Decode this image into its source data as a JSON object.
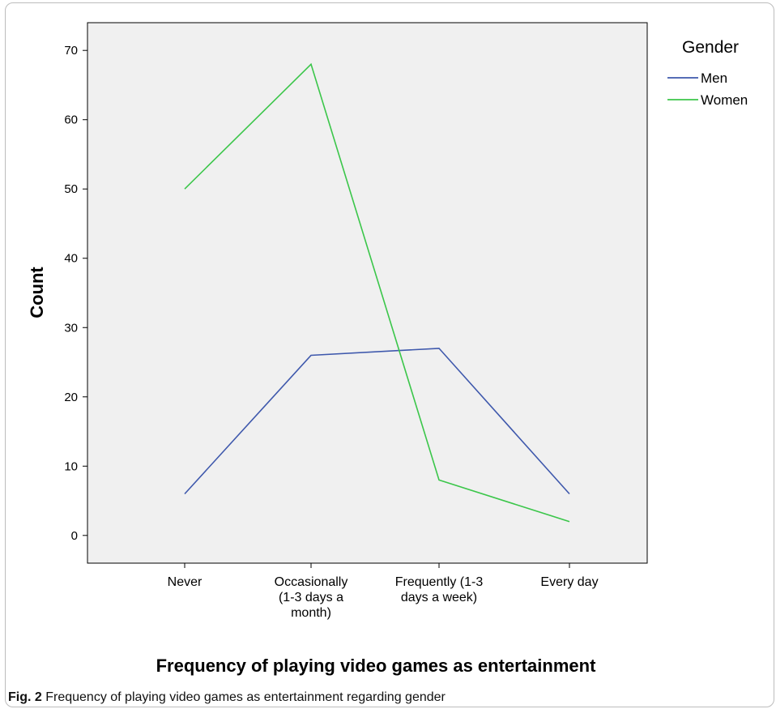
{
  "chart_data": {
    "type": "line",
    "title": "",
    "xlabel": "Frequency of playing video games as entertainment",
    "ylabel": "Count",
    "categories": [
      [
        "Never"
      ],
      [
        "Occasionally",
        "(1-3 days a",
        "month)"
      ],
      [
        "Frequently (1-3",
        "days a week)"
      ],
      [
        "Every day"
      ]
    ],
    "series": [
      {
        "name": "Men",
        "values": [
          6,
          26,
          27,
          6
        ]
      },
      {
        "name": "Women",
        "values": [
          50,
          68,
          8,
          2
        ]
      }
    ],
    "ylim": [
      -4,
      74
    ],
    "yticks": [
      0,
      10,
      20,
      30,
      40,
      50,
      60,
      70
    ],
    "grid": false,
    "legend_position": "top-right",
    "legend_title": "Gender",
    "plot_background": "#f0f0f0",
    "series_colors": [
      "#3e58ac",
      "#3bc64a"
    ]
  },
  "caption": {
    "label": "Fig. 2",
    "text": " Frequency of playing video games as entertainment regarding gender"
  }
}
